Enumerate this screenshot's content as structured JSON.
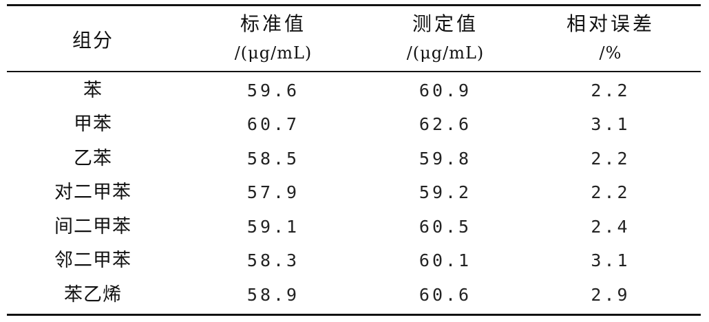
{
  "table": {
    "headers": {
      "group": "组分",
      "standard": {
        "label": "标准值",
        "unit": "/(μg/mL)"
      },
      "measured": {
        "label": "测定值",
        "unit": "/(μg/mL)"
      },
      "error": {
        "label": "相对误差",
        "unit": "/%"
      }
    },
    "rows": [
      {
        "name": "苯",
        "standard": "59.6",
        "measured": "60.9",
        "error": "2.2"
      },
      {
        "name": "甲苯",
        "standard": "60.7",
        "measured": "62.6",
        "error": "3.1"
      },
      {
        "name": "乙苯",
        "standard": "58.5",
        "measured": "59.8",
        "error": "2.2"
      },
      {
        "name": "对二甲苯",
        "standard": "57.9",
        "measured": "59.2",
        "error": "2.2"
      },
      {
        "name": "间二甲苯",
        "standard": "59.1",
        "measured": "60.5",
        "error": "2.4"
      },
      {
        "name": "邻二甲苯",
        "standard": "58.3",
        "measured": "60.1",
        "error": "3.1"
      },
      {
        "name": "苯乙烯",
        "standard": "58.9",
        "measured": "60.6",
        "error": "2.9"
      }
    ]
  }
}
